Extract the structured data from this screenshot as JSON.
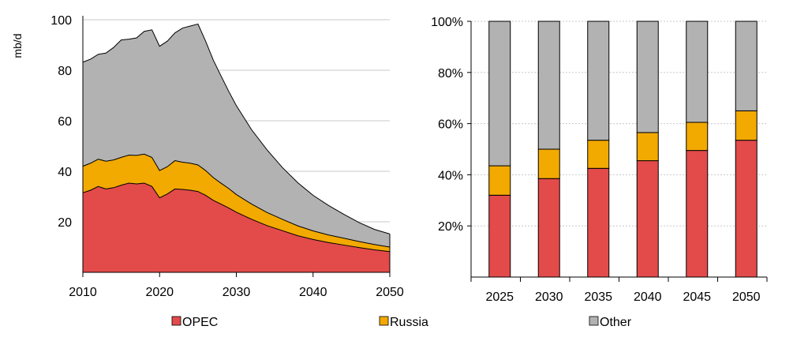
{
  "colors": {
    "opec": "#e34a4a",
    "russia": "#f2a900",
    "other": "#b2b2b2",
    "grid": "#c8c8c8",
    "axis": "#000000"
  },
  "legend": [
    {
      "label": "OPEC",
      "color": "#e34a4a"
    },
    {
      "label": "Russia",
      "color": "#f2a900"
    },
    {
      "label": "Other",
      "color": "#b2b2b2"
    }
  ],
  "chart_data": [
    {
      "type": "area",
      "stacked": true,
      "ylabel": "mb/d",
      "xlim": [
        2010,
        2050
      ],
      "ylim": [
        0,
        100
      ],
      "xticks": [
        2010,
        2020,
        2030,
        2040,
        2050
      ],
      "yticks": [
        20,
        40,
        60,
        80,
        100
      ],
      "grid": true,
      "x": [
        2010,
        2011,
        2012,
        2013,
        2014,
        2015,
        2016,
        2017,
        2018,
        2019,
        2020,
        2021,
        2022,
        2023,
        2024,
        2025,
        2026,
        2027,
        2028,
        2029,
        2030,
        2032,
        2034,
        2036,
        2038,
        2040,
        2042,
        2044,
        2046,
        2048,
        2050
      ],
      "series": [
        {
          "name": "OPEC",
          "color": "#e34a4a",
          "values": [
            31.5,
            32.5,
            34,
            33,
            33.5,
            34.5,
            35.3,
            35,
            35.3,
            34,
            29.5,
            31,
            33,
            32.8,
            32.5,
            32,
            30.5,
            28.5,
            27,
            25.5,
            23.8,
            21,
            18.5,
            16.5,
            14.5,
            13,
            11.8,
            10.8,
            9.8,
            8.9,
            8.2
          ]
        },
        {
          "name": "Russia",
          "color": "#f2a900",
          "values": [
            10.5,
            10.7,
            10.8,
            11,
            11,
            11,
            11.1,
            11.3,
            11.5,
            11.5,
            10.8,
            10.8,
            11.2,
            10.8,
            10.7,
            10.5,
            9.8,
            9,
            8.3,
            7.7,
            7,
            6,
            5.2,
            4.5,
            3.9,
            3.4,
            3,
            2.7,
            2.4,
            2.1,
            1.8
          ]
        },
        {
          "name": "Other",
          "color": "#b2b2b2",
          "values": [
            41.2,
            41.2,
            41.5,
            42.8,
            44.5,
            46.5,
            45.9,
            46.5,
            48.6,
            50.5,
            49.2,
            49.7,
            50.6,
            53.1,
            54.3,
            55.8,
            51.2,
            46.5,
            42.5,
            38.5,
            35.2,
            29.4,
            24.8,
            20.5,
            17.1,
            14.1,
            11.7,
            9.5,
            7.5,
            6.0,
            5.2
          ]
        }
      ]
    },
    {
      "type": "bar",
      "stacked": true,
      "percent": true,
      "categories": [
        "2025",
        "2030",
        "2035",
        "2040",
        "2045",
        "2050"
      ],
      "ylim": [
        0,
        100
      ],
      "yticks": [
        "20%",
        "40%",
        "60%",
        "80%",
        "100%"
      ],
      "grid": true,
      "series": [
        {
          "name": "OPEC",
          "color": "#e34a4a",
          "values": [
            32,
            38.5,
            42.5,
            45.5,
            49.5,
            53.5
          ]
        },
        {
          "name": "Russia",
          "color": "#f2a900",
          "values": [
            11.5,
            11.5,
            11,
            11,
            11,
            11.5
          ]
        },
        {
          "name": "Other",
          "color": "#b2b2b2",
          "values": [
            56.5,
            50,
            46.5,
            43.5,
            39.5,
            35
          ]
        }
      ]
    }
  ]
}
